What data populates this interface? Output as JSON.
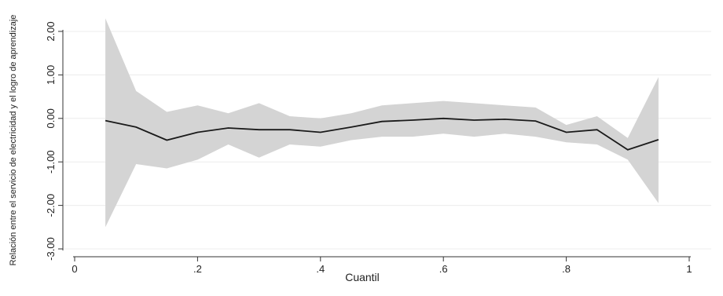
{
  "chart_data": {
    "type": "line",
    "title": "",
    "xlabel": "Cuantil",
    "ylabel": "Relación entre el servicio de electricidad y el logro de aprendizaje",
    "xlim": [
      0,
      1
    ],
    "ylim": [
      -3.0,
      2.0
    ],
    "grid": "horizontal",
    "legend": "none",
    "xticks": [
      {
        "value": 0,
        "label": "0"
      },
      {
        "value": 0.2,
        "label": ".2"
      },
      {
        "value": 0.4,
        "label": ".4"
      },
      {
        "value": 0.6,
        "label": ".6"
      },
      {
        "value": 0.8,
        "label": ".8"
      },
      {
        "value": 1,
        "label": "1"
      }
    ],
    "yticks": [
      {
        "value": 2,
        "label": "2.00"
      },
      {
        "value": 1,
        "label": "1.00"
      },
      {
        "value": 0,
        "label": "0.00"
      },
      {
        "value": -1,
        "label": "-1.00"
      },
      {
        "value": -2,
        "label": "-2.00"
      },
      {
        "value": -3,
        "label": "-3.00"
      }
    ],
    "x": [
      0.05,
      0.1,
      0.15,
      0.2,
      0.25,
      0.3,
      0.35,
      0.4,
      0.45,
      0.5,
      0.55,
      0.6,
      0.65,
      0.7,
      0.75,
      0.8,
      0.85,
      0.9,
      0.95
    ],
    "y": [
      -0.05,
      -0.2,
      -0.5,
      -0.32,
      -0.22,
      -0.26,
      -0.26,
      -0.32,
      -0.2,
      -0.07,
      -0.04,
      0.0,
      -0.04,
      -0.02,
      -0.06,
      -0.32,
      -0.26,
      -0.72,
      -0.49
    ],
    "upper": [
      2.3,
      0.63,
      0.15,
      0.3,
      0.12,
      0.35,
      0.05,
      0.0,
      0.12,
      0.3,
      0.35,
      0.4,
      0.35,
      0.3,
      0.25,
      -0.15,
      0.05,
      -0.45,
      0.95
    ],
    "lower": [
      -2.5,
      -1.05,
      -1.15,
      -0.95,
      -0.6,
      -0.9,
      -0.6,
      -0.65,
      -0.5,
      -0.42,
      -0.42,
      -0.35,
      -0.42,
      -0.35,
      -0.42,
      -0.55,
      -0.6,
      -0.95,
      -1.95
    ],
    "colors": {
      "line": "#1a1a1a",
      "band": "#d4d4d4",
      "grid": "#ececec",
      "axis": "#333333"
    }
  }
}
